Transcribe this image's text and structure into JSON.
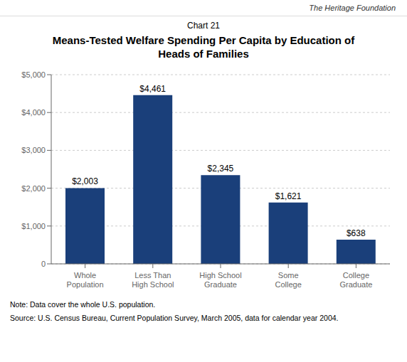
{
  "chart_data": {
    "type": "bar",
    "subtitle": "Chart 21",
    "title": "Means-Tested Welfare Spending Per Capita by Education of\nHeads of Families",
    "categories": [
      "Whole\nPopulation",
      "Less Than\nHigh School",
      "High School\nGraduate",
      "Some\nCollege",
      "College\nGraduate"
    ],
    "values": [
      2003,
      4461,
      2345,
      1621,
      638
    ],
    "value_labels": [
      "$2,003",
      "$4,461",
      "$2,345",
      "$1,621",
      "$638"
    ],
    "color": "#1a3f7a",
    "ylim": [
      0,
      5000
    ],
    "yticks": [
      0,
      {
        "value": 1000,
        "label": "$1,000"
      },
      {
        "value": 2000,
        "label": "$2,000"
      },
      {
        "value": 3000,
        "label": "$3,000"
      },
      {
        "value": 4000,
        "label": "$4,000"
      },
      {
        "value": 5000,
        "label": "$5,000"
      }
    ],
    "grid": true,
    "annotations": [
      "The Heritage Foundation",
      "Note: Data cover the whole U.S. population.",
      "Source: U.S. Census Bureau, Current Population Survey, March 2005, data for calendar year 2004."
    ]
  }
}
